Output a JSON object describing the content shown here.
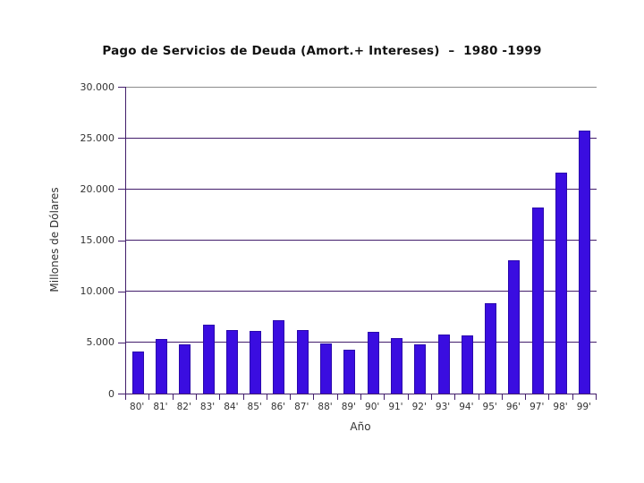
{
  "title": "Pago de Servicios de Deuda (Amort.+ Intereses)  –  1980 -1999",
  "chart_data": {
    "type": "bar",
    "title": "Pago de Servicios de Deuda (Amort.+ Intereses) – 1980 -1999",
    "xlabel": "Año",
    "ylabel": "Millones de Dólares",
    "categories": [
      "80'",
      "81'",
      "82'",
      "83'",
      "84'",
      "85'",
      "86'",
      "87'",
      "88'",
      "89'",
      "90'",
      "91'",
      "92'",
      "93'",
      "94'",
      "95'",
      "96'",
      "97'",
      "98'",
      "99'"
    ],
    "values": [
      4100,
      5300,
      4800,
      6700,
      6200,
      6100,
      7200,
      6200,
      4900,
      4300,
      6000,
      5400,
      4800,
      5800,
      5700,
      8800,
      13000,
      18200,
      21600,
      25700
    ],
    "ylim": [
      0,
      30000
    ],
    "yticks": [
      0,
      5000,
      10000,
      15000,
      20000,
      25000,
      30000
    ],
    "ytick_labels": [
      "0",
      "5.000",
      "10.000",
      "15.000",
      "20.000",
      "25.000",
      "30.000"
    ],
    "grid": true,
    "legend": "none",
    "colors": {
      "bar_fill": "#3a0de0",
      "bar_border": "#2a07ad",
      "gridline": "#421d6b",
      "gridline_top": "#8c8c8c",
      "axis": "#421d6b",
      "label": "#333333",
      "title": "#111111"
    }
  }
}
